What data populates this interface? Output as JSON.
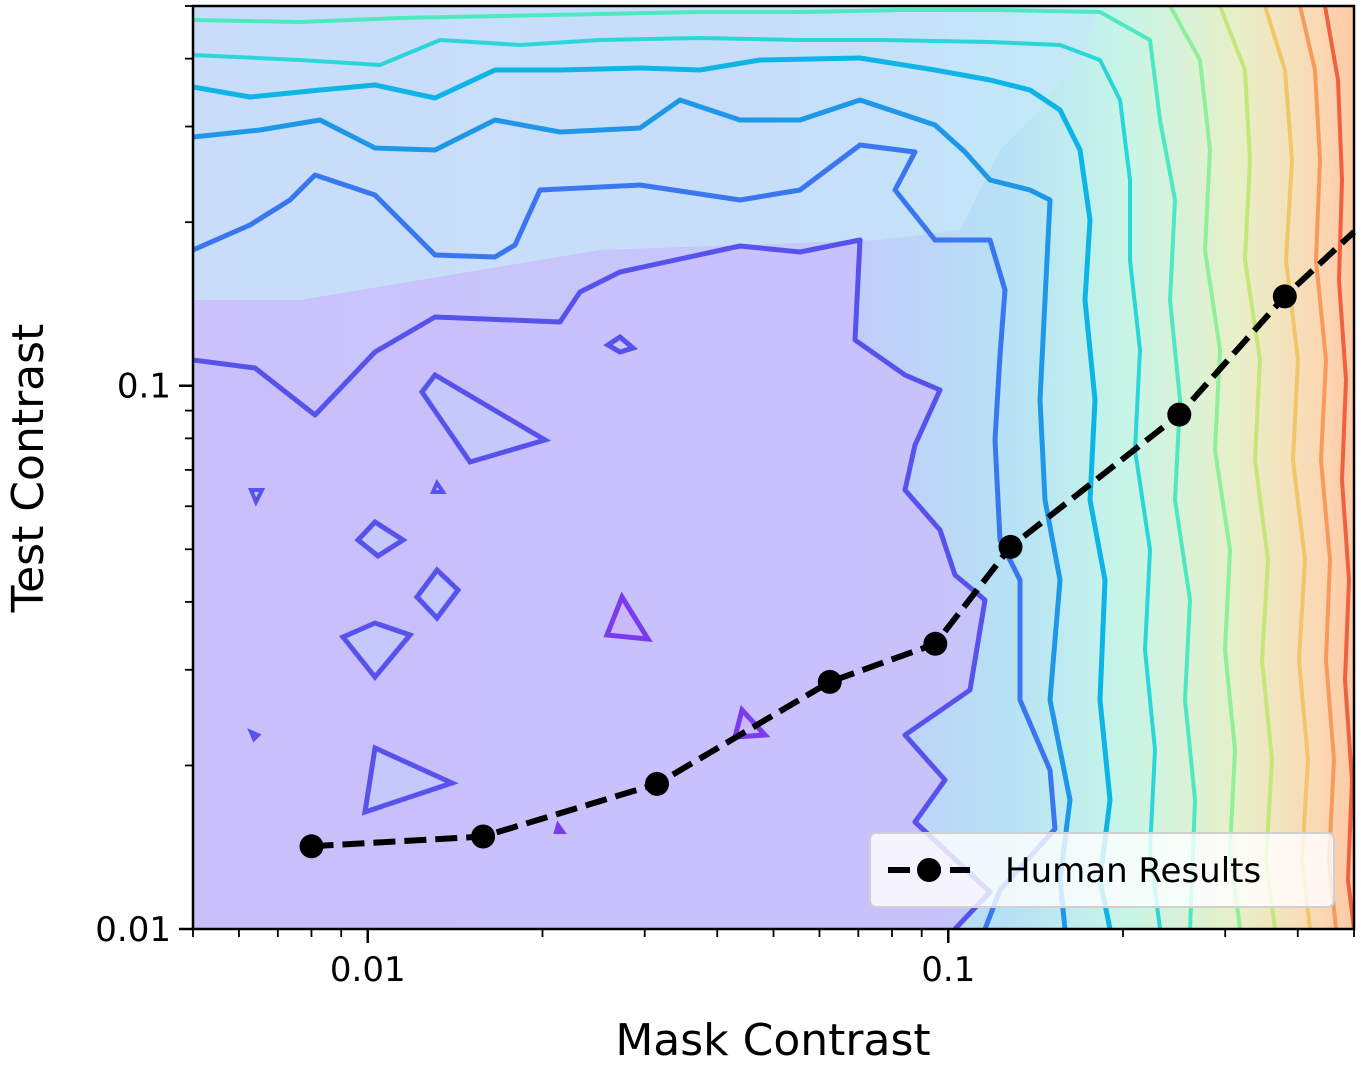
{
  "chart_data": {
    "type": "line",
    "title": "",
    "xlabel": "Mask Contrast",
    "ylabel": "Test Contrast",
    "xscale": "log",
    "yscale": "log",
    "xlim": [
      0.005,
      0.5
    ],
    "ylim": [
      0.01,
      0.5
    ],
    "xticks": [
      {
        "value": 0.01,
        "label": "0.01"
      },
      {
        "value": 0.1,
        "label": "0.1"
      }
    ],
    "yticks": [
      {
        "value": 0.01,
        "label": "0.01"
      },
      {
        "value": 0.1,
        "label": "0.1"
      }
    ],
    "grid": false,
    "legend_position": "lower-right",
    "background": "filled contour map (rainbow colormap, violet low values at lower left to red high values at right edge)",
    "series": [
      {
        "name": "Human Results",
        "style": "dashed-with-markers",
        "color": "#000000",
        "x": [
          0.008,
          0.0158,
          0.0315,
          0.0625,
          0.095,
          0.128,
          0.25,
          0.38,
          0.5
        ],
        "y": [
          0.0142,
          0.0148,
          0.0185,
          0.0285,
          0.0335,
          0.0505,
          0.0885,
          0.146,
          0.192
        ],
        "markers": [
          true,
          true,
          true,
          true,
          true,
          true,
          true,
          true,
          false
        ]
      }
    ]
  }
}
